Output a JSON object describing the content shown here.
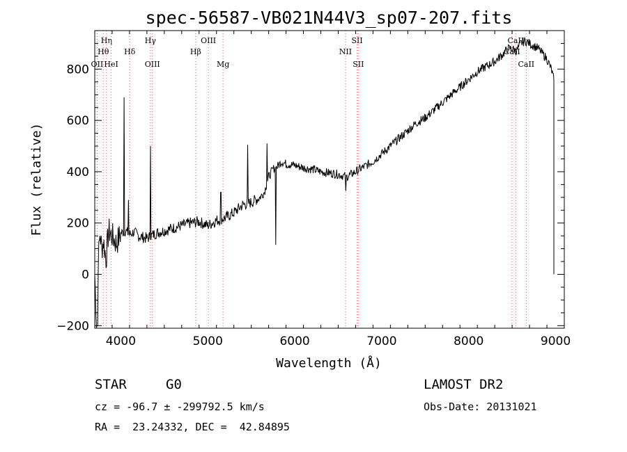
{
  "chart_data": {
    "type": "line",
    "title": "spec-56587-VB021N44V3_sp07-207.fits",
    "xlabel": "Wavelength (Å)",
    "ylabel": "Flux (relative)",
    "xlim": [
      3700,
      9100
    ],
    "ylim": [
      -210,
      950
    ],
    "x_ticks": [
      4000,
      5000,
      6000,
      7000,
      8000,
      9000
    ],
    "y_ticks": [
      -200,
      0,
      200,
      400,
      600,
      800
    ],
    "grid": false,
    "line_color": "#000000",
    "marker_color": "#d06060",
    "series": [
      {
        "x": [
          3700,
          3720,
          3740,
          3760,
          3780,
          3800,
          3830,
          3860,
          3900,
          3950,
          4000,
          4050,
          4100,
          4150,
          4200,
          4300,
          4400,
          4500,
          4600,
          4700,
          4800,
          4900,
          5000,
          5100,
          5200,
          5300,
          5400,
          5500,
          5600,
          5650,
          5700,
          5750,
          5800,
          5850,
          5900,
          6000,
          6100,
          6200,
          6300,
          6400,
          6500,
          6550,
          6600,
          6700,
          6800,
          6900,
          7000,
          7100,
          7200,
          7300,
          7400,
          7500,
          7600,
          7700,
          7800,
          7900,
          8000,
          8100,
          8200,
          8300,
          8400,
          8450,
          8500,
          8550,
          8600,
          8650,
          8700,
          8750,
          8800,
          8850,
          8900,
          8950,
          8980
        ],
        "y": [
          0,
          -180,
          50,
          160,
          100,
          130,
          60,
          170,
          150,
          120,
          160,
          170,
          155,
          165,
          150,
          140,
          160,
          170,
          180,
          190,
          200,
          205,
          190,
          210,
          220,
          240,
          270,
          280,
          300,
          320,
          380,
          410,
          420,
          440,
          430,
          425,
          415,
          410,
          400,
          395,
          390,
          385,
          380,
          400,
          420,
          440,
          470,
          500,
          530,
          560,
          590,
          610,
          640,
          670,
          700,
          730,
          760,
          790,
          810,
          830,
          860,
          880,
          880,
          870,
          900,
          910,
          900,
          890,
          880,
          860,
          840,
          800,
          760
        ]
      }
    ],
    "spikes": [
      {
        "x": 3730,
        "y": -200
      },
      {
        "x": 4040,
        "y": 690
      },
      {
        "x": 4085,
        "y": 290
      },
      {
        "x": 4340,
        "y": 500
      },
      {
        "x": 5150,
        "y": 320
      },
      {
        "x": 5460,
        "y": 505
      },
      {
        "x": 5680,
        "y": 510
      },
      {
        "x": 5780,
        "y": 115
      },
      {
        "x": 6590,
        "y": 325
      }
    ],
    "spectral_lines": [
      {
        "x": 3727,
        "label": "OII",
        "row": 4
      },
      {
        "x": 3798,
        "label": "Hθ",
        "row": 2
      },
      {
        "x": 3835,
        "label": "Hη",
        "row": 1
      },
      {
        "x": 3889,
        "label": "HeI",
        "row": 4
      },
      {
        "x": 4102,
        "label": "Hδ",
        "row": 2
      },
      {
        "x": 4340,
        "label": "Hγ",
        "row": 1
      },
      {
        "x": 4363,
        "label": "OIII",
        "row": 4
      },
      {
        "x": 4861,
        "label": "Hβ",
        "row": 2
      },
      {
        "x": 5007,
        "label": "OIII",
        "row": 1
      },
      {
        "x": 5175,
        "label": "Mg",
        "row": 4
      },
      {
        "x": 6584,
        "label": "NII",
        "row": 2
      },
      {
        "x": 6717,
        "label": "SII",
        "row": 1
      },
      {
        "x": 6731,
        "label": "SII",
        "row": 4
      },
      {
        "x": 8498,
        "label": "CaII",
        "row": 2
      },
      {
        "x": 8542,
        "label": "CaII",
        "row": 1
      },
      {
        "x": 8662,
        "label": "CaII",
        "row": 4
      }
    ]
  },
  "info": {
    "object_class": "STAR",
    "subclass": "G0",
    "survey": "LAMOST DR2",
    "redshift": "cz = -96.7 ± -299792.5 km/s",
    "obs_date": "Obs-Date: 20131021",
    "coords": "RA =  23.24332, DEC =  42.84895"
  }
}
